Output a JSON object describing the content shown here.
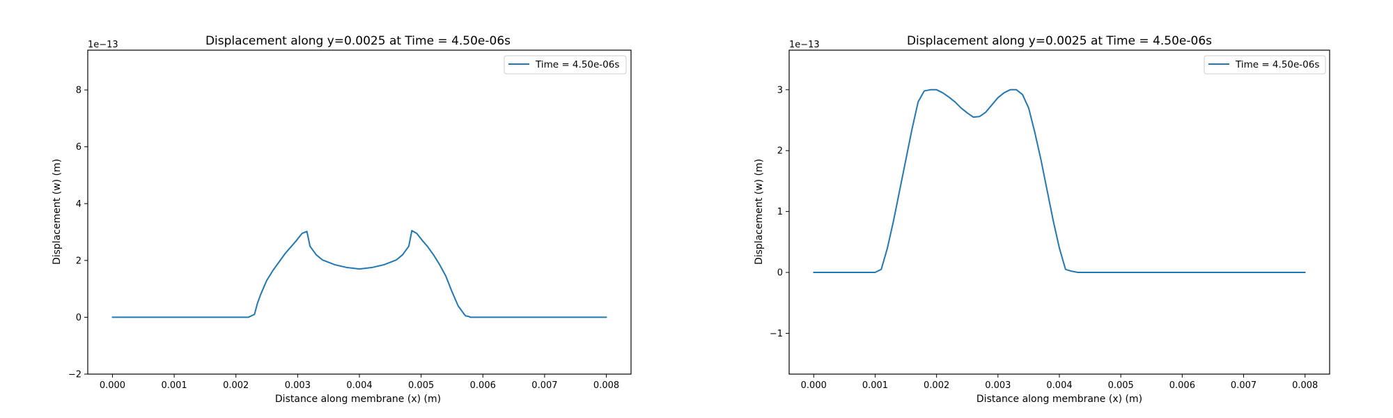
{
  "figure": {
    "background": "#ffffff",
    "line_color": "#1f77b4"
  },
  "chart_data": [
    {
      "type": "line",
      "title": "Displacement along y=0.0025 at Time = 4.50e-06s",
      "xlabel": "Distance along membrane (x) (m)",
      "ylabel": "Displacement (w) (m)",
      "y_offset_label": "1e−13",
      "y_scale_exponent": -13,
      "xlim": [
        -0.0004,
        0.0084
      ],
      "ylim": [
        -2.0,
        9.4
      ],
      "xticks": [
        0.0,
        0.001,
        0.002,
        0.003,
        0.004,
        0.005,
        0.006,
        0.007,
        0.008
      ],
      "xtick_labels": [
        "0.000",
        "0.001",
        "0.002",
        "0.003",
        "0.004",
        "0.005",
        "0.006",
        "0.007",
        "0.008"
      ],
      "yticks": [
        -2,
        0,
        2,
        4,
        6,
        8
      ],
      "ytick_labels": [
        "−2",
        "0",
        "2",
        "4",
        "6",
        "8"
      ],
      "grid": false,
      "legend_position": "top-right",
      "series": [
        {
          "name": "Time = 4.50e-06s",
          "color": "#1f77b4",
          "x": [
            0.0,
            0.0005,
            0.001,
            0.0015,
            0.002,
            0.0022,
            0.00225,
            0.0023,
            0.00235,
            0.0024,
            0.0025,
            0.0026,
            0.0027,
            0.0028,
            0.0029,
            0.00298,
            0.00307,
            0.00315,
            0.0032,
            0.0033,
            0.0034,
            0.0036,
            0.0038,
            0.004,
            0.0042,
            0.0044,
            0.0046,
            0.0047,
            0.0048,
            0.00485,
            0.00493,
            0.00502,
            0.0051,
            0.0052,
            0.0053,
            0.0054,
            0.0055,
            0.0056,
            0.0057,
            0.00572,
            0.00577,
            0.0058,
            0.006,
            0.0065,
            0.007,
            0.0075,
            0.008
          ],
          "y": [
            0,
            0,
            0,
            0,
            0,
            0,
            0.05,
            0.1,
            0.5,
            0.8,
            1.3,
            1.65,
            1.95,
            2.25,
            2.5,
            2.7,
            2.95,
            3.02,
            2.5,
            2.2,
            2.02,
            1.85,
            1.75,
            1.7,
            1.75,
            1.85,
            2.02,
            2.2,
            2.5,
            3.05,
            2.95,
            2.7,
            2.5,
            2.2,
            1.85,
            1.45,
            0.9,
            0.4,
            0.1,
            0.05,
            0.03,
            0,
            0,
            0,
            0,
            0,
            0
          ]
        }
      ]
    },
    {
      "type": "line",
      "title": "Displacement along y=0.0025 at Time = 4.50e-06s",
      "xlabel": "Distance along membrane (x) (m)",
      "ylabel": "Displacement (w) (m)",
      "y_offset_label": "1e−13",
      "y_scale_exponent": -13,
      "xlim": [
        -0.0004,
        0.0084
      ],
      "ylim": [
        -1.67,
        3.65
      ],
      "xticks": [
        0.0,
        0.001,
        0.002,
        0.003,
        0.004,
        0.005,
        0.006,
        0.007,
        0.008
      ],
      "xtick_labels": [
        "0.000",
        "0.001",
        "0.002",
        "0.003",
        "0.004",
        "0.005",
        "0.006",
        "0.007",
        "0.008"
      ],
      "yticks": [
        -1,
        0,
        1,
        2,
        3
      ],
      "ytick_labels": [
        "−1",
        "0",
        "1",
        "2",
        "3"
      ],
      "grid": false,
      "legend_position": "top-right",
      "series": [
        {
          "name": "Time = 4.50e-06s",
          "color": "#1f77b4",
          "x": [
            0.0,
            0.0005,
            0.0009,
            0.001,
            0.0011,
            0.0012,
            0.0013,
            0.0014,
            0.0015,
            0.0016,
            0.0017,
            0.0018,
            0.0019,
            0.002,
            0.0021,
            0.0022,
            0.0023,
            0.0024,
            0.0025,
            0.0026,
            0.0027,
            0.0028,
            0.0029,
            0.003,
            0.0031,
            0.0032,
            0.0033,
            0.0034,
            0.0035,
            0.0036,
            0.0037,
            0.0038,
            0.0039,
            0.004,
            0.0041,
            0.0042,
            0.0043,
            0.0044,
            0.0045,
            0.005,
            0.006,
            0.007,
            0.008
          ],
          "y": [
            0,
            0,
            0,
            0,
            0.05,
            0.4,
            0.85,
            1.35,
            1.85,
            2.35,
            2.8,
            2.98,
            3.0,
            3.0,
            2.95,
            2.88,
            2.8,
            2.7,
            2.62,
            2.55,
            2.56,
            2.63,
            2.75,
            2.87,
            2.95,
            3.0,
            3.0,
            2.92,
            2.7,
            2.3,
            1.85,
            1.35,
            0.85,
            0.4,
            0.05,
            0.02,
            0,
            0,
            0,
            0,
            0,
            0,
            0
          ]
        }
      ]
    }
  ]
}
